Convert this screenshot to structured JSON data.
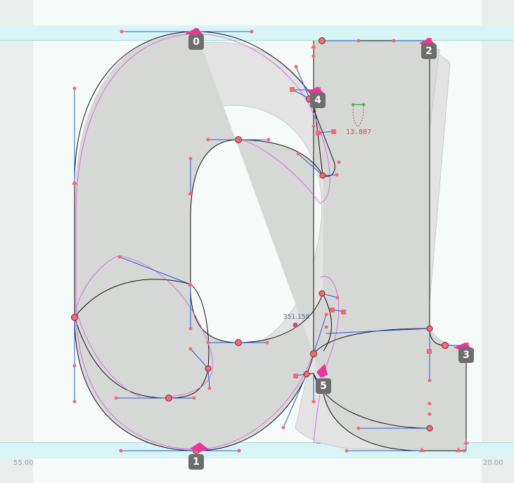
{
  "editor": {
    "metrics": {
      "left_sidebearing": "55.00",
      "right_sidebearing": "20.00"
    },
    "measurement": {
      "value": "13.807"
    },
    "coordinate_readout": {
      "value": "351.158"
    },
    "contour_start_points": [
      {
        "label": "0"
      },
      {
        "label": "1"
      },
      {
        "label": "2"
      },
      {
        "label": "3"
      },
      {
        "label": "4"
      },
      {
        "label": "5"
      }
    ],
    "colors": {
      "canvas_background": "#f6fbf9",
      "sidebearing_shade": "#e9eeec",
      "alignment_zone": "#d9f4f4",
      "glyph_fill": "#d6d8d6",
      "outline": "#111111",
      "handle_line": "#2a5bd7",
      "node": "#f26a74",
      "background_layer": "#c9c9c9",
      "measure": "#d84a3c",
      "badge": "#6d6d6d"
    }
  }
}
